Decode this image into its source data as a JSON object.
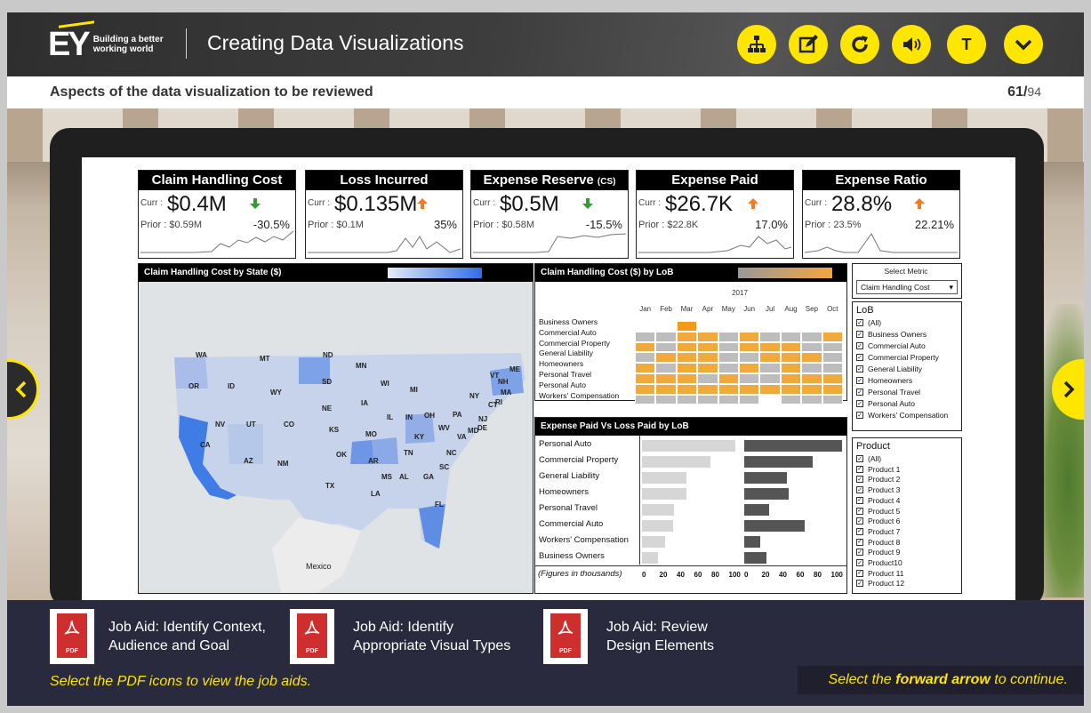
{
  "header": {
    "logo_text": "EY",
    "tagline": "Building a better working world",
    "title": "Creating Data Visualizations",
    "buttons": [
      {
        "name": "sitemap",
        "icon": "sitemap-icon"
      },
      {
        "name": "notes",
        "icon": "edit-icon"
      },
      {
        "name": "replay",
        "icon": "replay-icon"
      },
      {
        "name": "audio",
        "icon": "speaker-icon"
      },
      {
        "name": "transcript",
        "icon": "transcript-icon",
        "label": "T"
      },
      {
        "name": "menu",
        "icon": "chevron-down-icon"
      }
    ]
  },
  "subheader": {
    "title": "Aspects of the data visualization to be reviewed",
    "current_page": "61",
    "separator": "/",
    "total_pages": "94"
  },
  "kpis": [
    {
      "title": "Claim Handling Cost",
      "curr_label": "Curr :",
      "curr": "$0.4M",
      "prior": "Prior : $0.59M",
      "change": "-30.5%",
      "direction": "down"
    },
    {
      "title": "Loss Incurred",
      "curr_label": "Curr :",
      "curr": "$0.135M",
      "prior": "Prior : $0.1M",
      "change": "35%",
      "direction": "up"
    },
    {
      "title": "Expense Reserve",
      "title_suffix": "(CS)",
      "curr_label": "Curr :",
      "curr": "$0.5M",
      "prior": "Prior : $0.58M",
      "change": "-15.5%",
      "direction": "down"
    },
    {
      "title": "Expense Paid",
      "curr_label": "Curr :",
      "curr": "$26.7K",
      "prior": "Prior : $22.8K",
      "change": "17.0%",
      "direction": "up"
    },
    {
      "title": "Expense Ratio",
      "curr_label": "Curr :",
      "curr": "28.8%",
      "prior": "Prior : 23.5%",
      "change": "22.21%",
      "direction": "up"
    }
  ],
  "map_panel": {
    "title": "Claim Handling Cost by State ($)",
    "mexico_label": "Mexico",
    "states": [
      "WA",
      "MT",
      "ND",
      "MN",
      "OR",
      "ID",
      "SD",
      "WI",
      "MI",
      "NY",
      "ME",
      "WY",
      "NE",
      "IA",
      "PA",
      "NV",
      "UT",
      "CO",
      "IL",
      "IN",
      "OH",
      "NJ",
      "CA",
      "KS",
      "MO",
      "KY",
      "WV",
      "VA",
      "AZ",
      "NM",
      "OK",
      "AR",
      "TN",
      "NC",
      "MS",
      "AL",
      "GA",
      "SC",
      "TX",
      "LA",
      "FL",
      "NH",
      "MA",
      "CT",
      "RI",
      "DE",
      "MD",
      "VT"
    ]
  },
  "heatmap_panel": {
    "title": "Claim Handling Cost ($) by LoB",
    "year": "2017",
    "months": [
      "Jan",
      "Feb",
      "Mar",
      "Apr",
      "May",
      "Jun",
      "Jul",
      "Aug",
      "Sep",
      "Oct"
    ],
    "lobs": [
      "Business  Owners",
      "Commercial Auto",
      "Commercial Property",
      "General Liability",
      "Homeowners",
      "Personal Travel",
      "Personal Auto",
      "Workers' Compensation"
    ],
    "grid": [
      [
        0,
        0,
        3,
        0,
        0,
        0,
        0,
        0,
        0,
        0
      ],
      [
        1,
        1,
        2,
        2,
        1,
        2,
        1,
        1,
        1,
        2
      ],
      [
        2,
        1,
        2,
        2,
        1,
        2,
        2,
        2,
        1,
        1
      ],
      [
        1,
        2,
        2,
        2,
        1,
        1,
        2,
        2,
        2,
        1
      ],
      [
        2,
        1,
        2,
        2,
        1,
        2,
        1,
        2,
        1,
        1
      ],
      [
        2,
        2,
        2,
        1,
        2,
        1,
        1,
        2,
        2,
        2
      ],
      [
        2,
        2,
        2,
        2,
        2,
        2,
        2,
        2,
        2,
        2
      ],
      [
        1,
        1,
        1,
        1,
        1,
        1,
        0,
        1,
        1,
        1
      ]
    ],
    "colors": [
      "#ffffff",
      "#bdbdbd",
      "#f2a93b",
      "#f29a1a"
    ]
  },
  "bar_panel": {
    "title": "Expense Paid Vs Loss Paid by LoB",
    "categories": [
      "Personal Auto",
      "Commercial Property",
      "General Liability",
      "Homeowners",
      "Personal Travel",
      "Commercial Auto",
      "Workers' Compensation",
      "Business Owners"
    ],
    "expense_paid": [
      95,
      70,
      45,
      45,
      33,
      32,
      24,
      16
    ],
    "loss_paid": [
      100,
      70,
      44,
      45,
      25,
      62,
      16,
      23
    ],
    "axis_note": "(Figures in thousands)",
    "ticks": [
      "0",
      "20",
      "40",
      "60",
      "80",
      "100"
    ],
    "colors": {
      "expense": "#d6d6d6",
      "loss": "#555555"
    }
  },
  "filters": {
    "metric_label": "Select Metric",
    "metric_value": "Claim Handling Cost",
    "lob_title": "LoB",
    "lob_items": [
      "(All)",
      "Business  Owners",
      "Commercial Auto",
      "Commercial Property",
      "General Liability",
      "Homeowners",
      "Personal Travel",
      "Personal Auto",
      "Workers' Compensation"
    ],
    "product_title": "Product",
    "product_items": [
      "(All)",
      "Product 1",
      "Product 2",
      "Product 3",
      "Product 4",
      "Product 5",
      "Product 6",
      "Product 7",
      "Product 8",
      "Product 9",
      "Product10",
      "Product 11",
      "Product 12"
    ]
  },
  "job_aids": [
    {
      "line1": "Job Aid: Identify Context,",
      "line2": "Audience and Goal",
      "badge": "PDF"
    },
    {
      "line1": "Job Aid: Identify",
      "line2": "Appropriate Visual Types",
      "badge": "PDF"
    },
    {
      "line1": "Job Aid: Review",
      "line2": "Design Elements",
      "badge": "PDF"
    }
  ],
  "footer": {
    "hint": "Select the PDF icons to view the job aids.",
    "fwd_pre": "Select the ",
    "fwd_bold": "forward arrow",
    "fwd_post": " to continue."
  },
  "colors": {
    "accent": "#ffe600",
    "dark": "#2a2a3e",
    "down": "#2e9e2e",
    "up": "#f07a2a"
  }
}
